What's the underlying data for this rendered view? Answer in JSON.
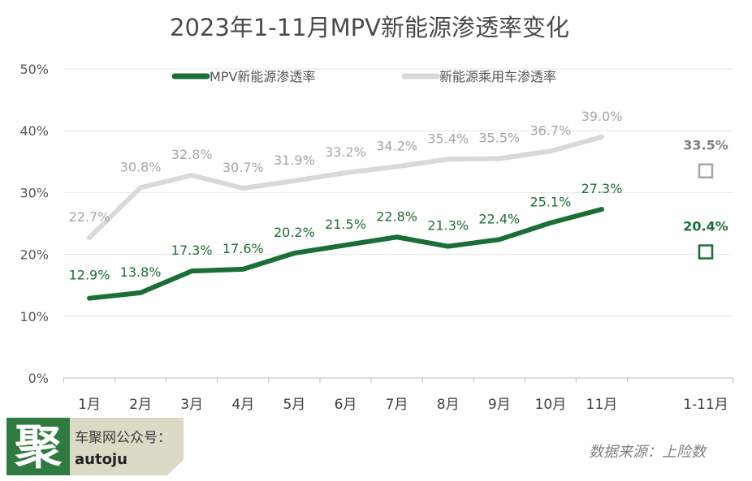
{
  "chart_data": {
    "type": "line",
    "title": "2023年1-11月MPV新能源渗透率变化",
    "categories": [
      "1月",
      "2月",
      "3月",
      "4月",
      "5月",
      "6月",
      "7月",
      "8月",
      "9月",
      "10月",
      "11月"
    ],
    "summary_category": "1-11月",
    "y_ticks": [
      "0%",
      "10%",
      "20%",
      "30%",
      "40%",
      "50%"
    ],
    "ylim": [
      0,
      50
    ],
    "grid": true,
    "legend_position": "top",
    "series": [
      {
        "name": "MPV新能源渗透率",
        "color": "#1b6e35",
        "values": [
          12.9,
          13.8,
          17.3,
          17.6,
          20.2,
          21.5,
          22.8,
          21.3,
          22.4,
          25.1,
          27.3
        ],
        "labels": [
          "12.9%",
          "13.8%",
          "17.3%",
          "17.6%",
          "20.2%",
          "21.5%",
          "22.8%",
          "21.3%",
          "22.4%",
          "25.1%",
          "27.3%"
        ],
        "summary_value": 20.4,
        "summary_label": "20.4%"
      },
      {
        "name": "新能源乘用车渗透率",
        "color": "#d9d9d9",
        "values": [
          22.7,
          30.8,
          32.8,
          30.7,
          31.9,
          33.2,
          34.2,
          35.4,
          35.5,
          36.7,
          39.0
        ],
        "labels": [
          "22.7%",
          "30.8%",
          "32.8%",
          "30.7%",
          "31.9%",
          "33.2%",
          "34.2%",
          "35.4%",
          "35.5%",
          "36.7%",
          "39.0%"
        ],
        "summary_value": 33.5,
        "summary_label": "33.5%"
      }
    ]
  },
  "footer": {
    "logo_char": "聚",
    "logo_line1": "车聚网公众号：",
    "logo_line2": "autoju",
    "source": "数据来源：上险数",
    "logo_color": "#2f7a3e",
    "logo_bg": "#dcd9c4"
  }
}
